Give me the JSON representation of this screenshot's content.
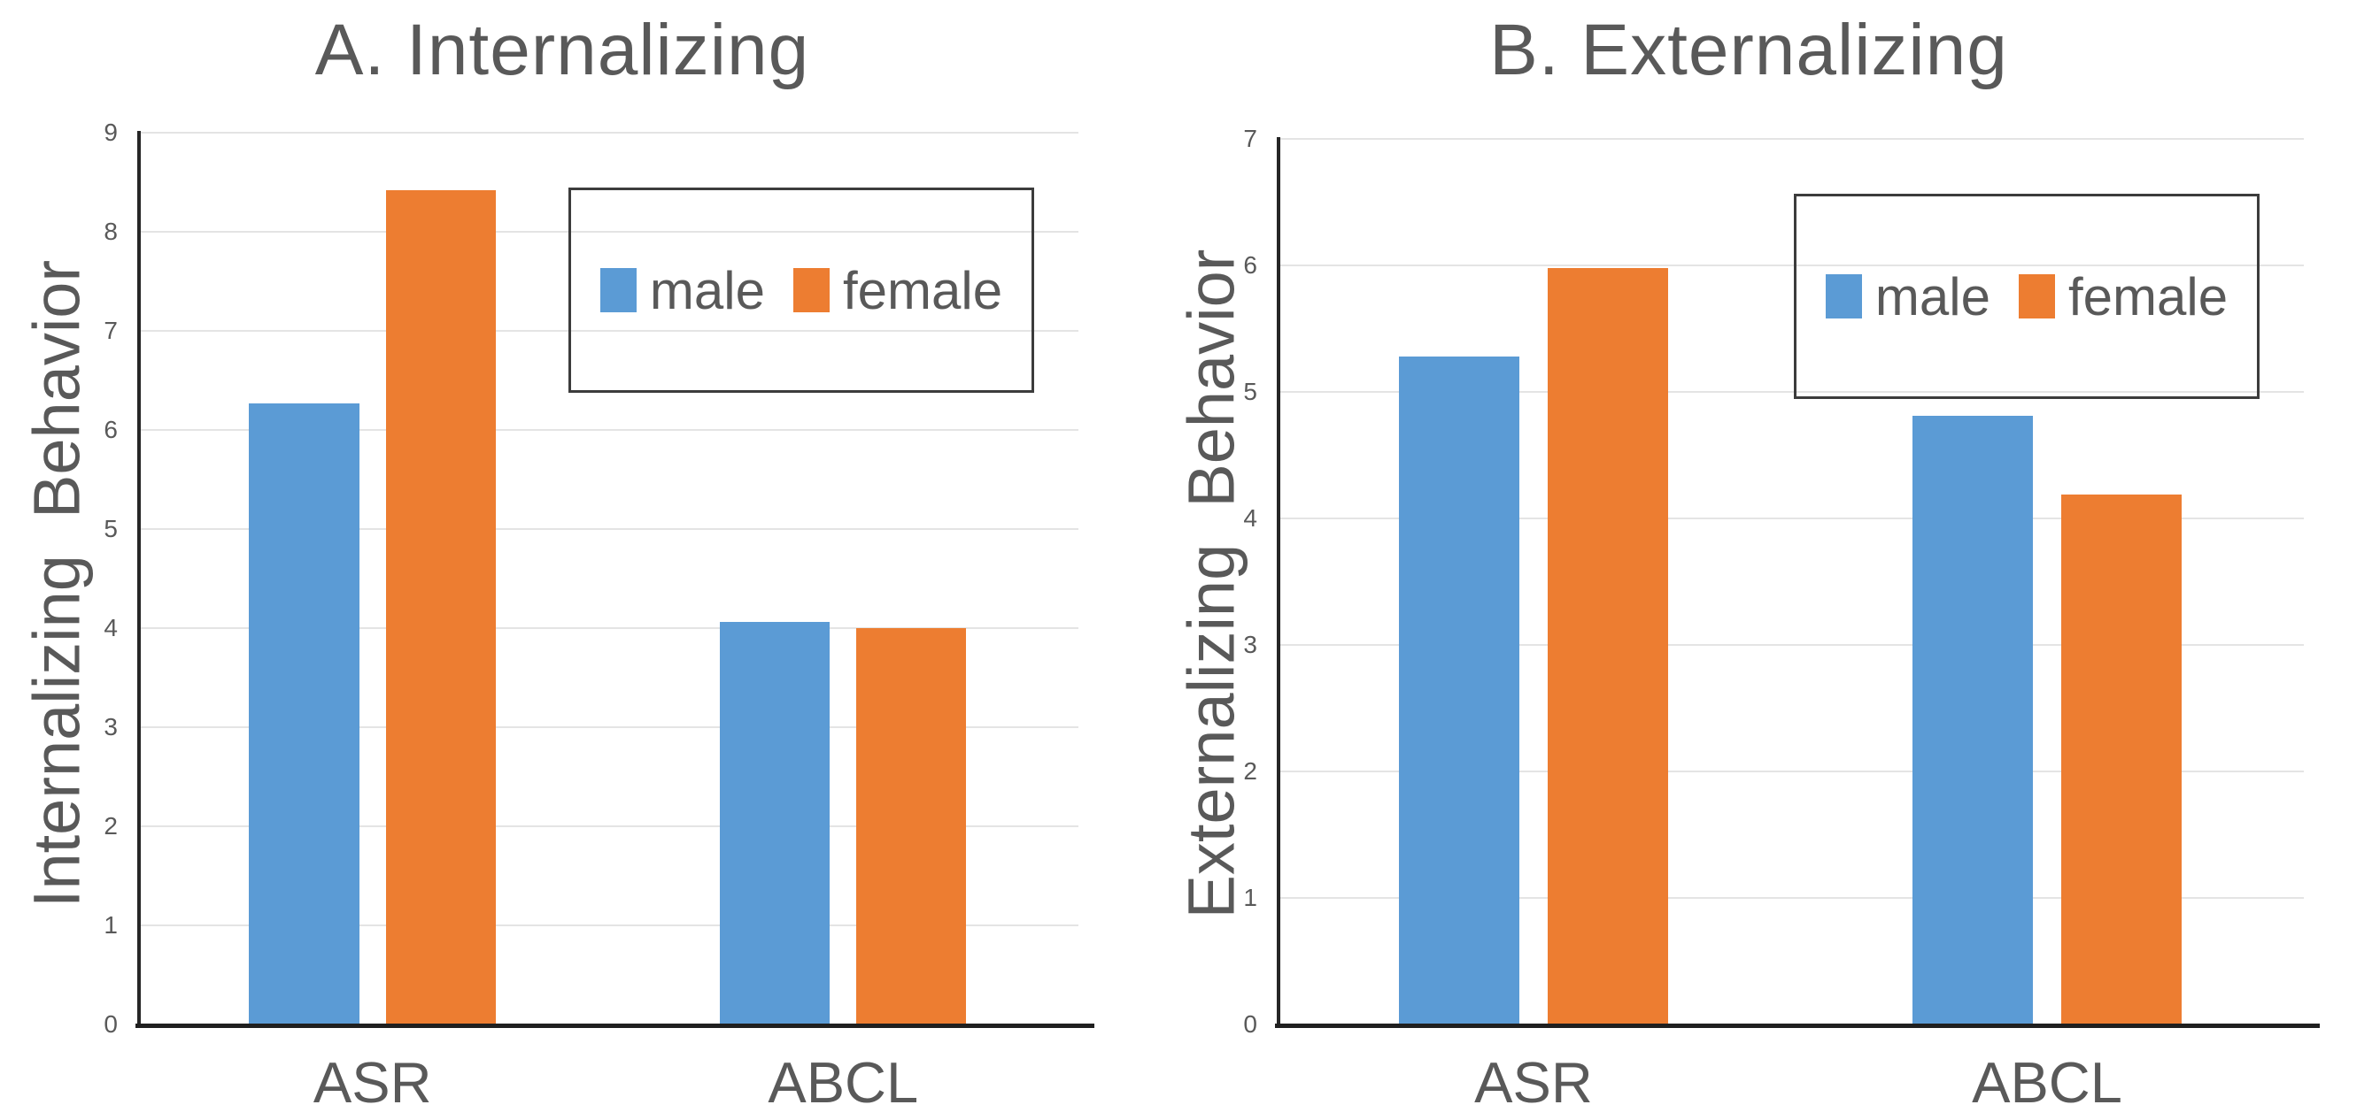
{
  "figure": {
    "background": "#ffffff",
    "text_color": "#595959",
    "grid_color": "#e4e4e4",
    "axis_color": "#262626",
    "series_colors": {
      "male": "#5B9BD5",
      "female": "#ED7D31"
    }
  },
  "chart_data": [
    {
      "type": "bar",
      "title": "A. Internalizing",
      "ylabel": "Internalizing  Behavior",
      "xlabel": "",
      "categories": [
        "ASR",
        "ABCL"
      ],
      "series": [
        {
          "name": "male",
          "values": [
            6.27,
            4.06
          ]
        },
        {
          "name": "female",
          "values": [
            8.42,
            4.0
          ]
        }
      ],
      "ylim": [
        0,
        9
      ],
      "ytick_step": 1,
      "grid": true,
      "legend_position": "upper right"
    },
    {
      "type": "bar",
      "title": "B. Externalizing",
      "ylabel": "Externalizing  Behavior",
      "xlabel": "",
      "categories": [
        "ASR",
        "ABCL"
      ],
      "series": [
        {
          "name": "male",
          "values": [
            5.28,
            4.81
          ]
        },
        {
          "name": "female",
          "values": [
            5.98,
            4.19
          ]
        }
      ],
      "ylim": [
        0,
        7
      ],
      "ytick_step": 1,
      "grid": true,
      "legend_position": "upper right"
    }
  ]
}
